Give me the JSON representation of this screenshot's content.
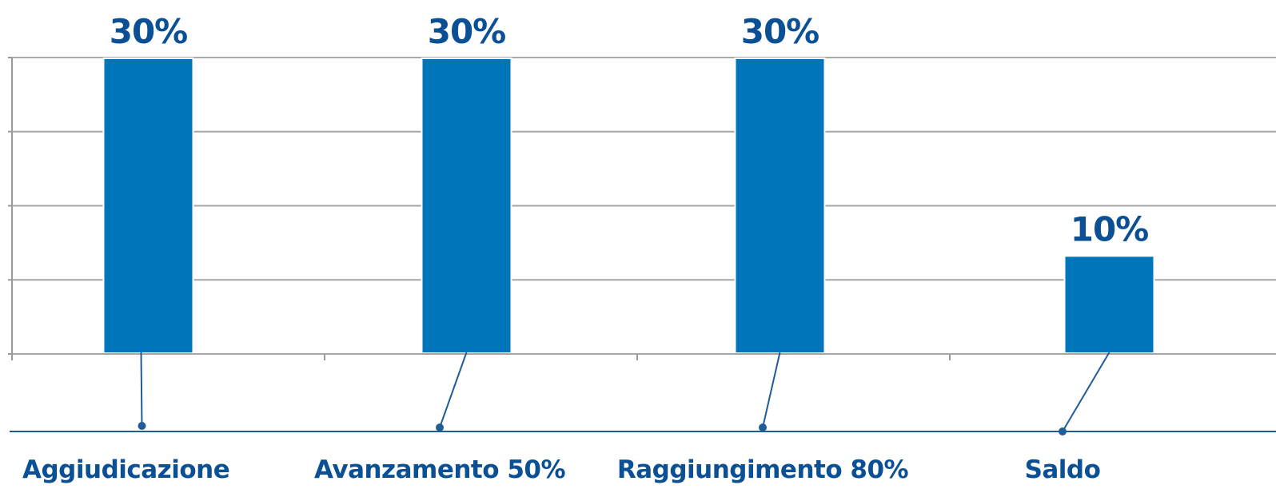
{
  "chart_data": {
    "type": "bar",
    "categories": [
      "Aggiudicazione",
      "Avanzamento 50%",
      "Raggiungimento 80%",
      "Saldo"
    ],
    "values": [
      30,
      30,
      30,
      10
    ],
    "value_labels": [
      "30%",
      "30%",
      "30%",
      "10%"
    ],
    "title": "",
    "xlabel": "",
    "ylabel": "",
    "ylim": [
      0,
      30
    ],
    "grid": true,
    "legend": "none"
  },
  "colors": {
    "bar": "#0075BA",
    "label": "#0B4F94",
    "grid": "#A6A6A6",
    "axis": "#9A9A9A",
    "leader": "#1F5C99",
    "baseline": "#1F5C99"
  }
}
